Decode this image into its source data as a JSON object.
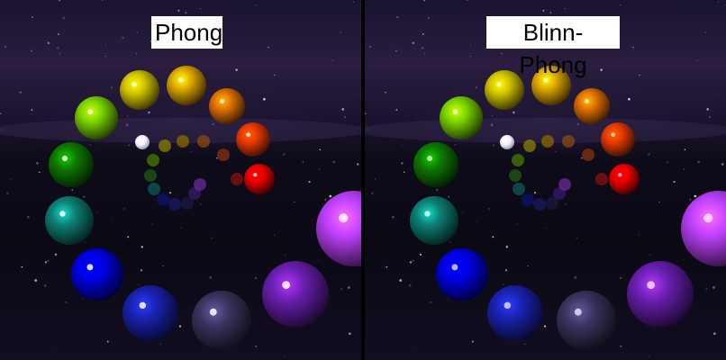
{
  "panels": [
    {
      "id": "left",
      "title": "Phong",
      "shading": "phong"
    },
    {
      "id": "right",
      "title": "Blinn-Phong",
      "shading": "blinn-phong"
    }
  ],
  "colors": {
    "background_top": "#1a1430",
    "background_bottom": "#0b0a14",
    "label_background": "#ffffff",
    "divider": "#000000"
  },
  "spheres": [
    {
      "name": "yellow",
      "color": "#d4c400"
    },
    {
      "name": "gold",
      "color": "#e0a800"
    },
    {
      "name": "orange",
      "color": "#e07000"
    },
    {
      "name": "red-orange",
      "color": "#e83a00"
    },
    {
      "name": "red",
      "color": "#f00000"
    },
    {
      "name": "lime",
      "color": "#7ad600"
    },
    {
      "name": "green",
      "color": "#0d7a00"
    },
    {
      "name": "teal",
      "color": "#0d8075"
    },
    {
      "name": "blue",
      "color": "#0000e6"
    },
    {
      "name": "dark-blue",
      "color": "#1a22b0"
    },
    {
      "name": "slate",
      "color": "#3a3560"
    },
    {
      "name": "purple",
      "color": "#6a1fb0"
    },
    {
      "name": "magenta",
      "color": "#c040ff"
    },
    {
      "name": "white-light",
      "color": "#ffffff"
    }
  ]
}
